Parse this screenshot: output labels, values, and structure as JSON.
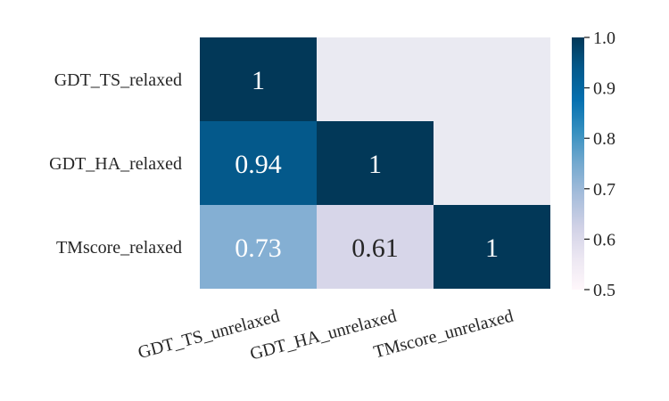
{
  "chart_data": {
    "type": "heatmap",
    "rows": [
      "GDT_TS_relaxed",
      "GDT_HA_relaxed",
      "TMscore_relaxed"
    ],
    "columns": [
      "GDT_TS_unrelaxed",
      "GDT_HA_unrelaxed",
      "TMscore_unrelaxed"
    ],
    "cells": [
      {
        "row": 0,
        "col": 0,
        "value": 1.0,
        "label": "1"
      },
      {
        "row": 1,
        "col": 0,
        "value": 0.94,
        "label": "0.94"
      },
      {
        "row": 1,
        "col": 1,
        "value": 1.0,
        "label": "1"
      },
      {
        "row": 2,
        "col": 0,
        "value": 0.73,
        "label": "0.73"
      },
      {
        "row": 2,
        "col": 1,
        "value": 0.61,
        "label": "0.61"
      },
      {
        "row": 2,
        "col": 2,
        "value": 1.0,
        "label": "1"
      }
    ],
    "masked": "upper-triangle",
    "colorbar": {
      "min": 0.5,
      "max": 1.0,
      "ticks": [
        "0.5",
        "0.6",
        "0.7",
        "0.8",
        "0.9",
        "1.0"
      ],
      "colormap": "PuBu",
      "colors": [
        "#fff7fb",
        "#ece7f2",
        "#d0d1e6",
        "#a6bddb",
        "#74a9cf",
        "#3690c0",
        "#0570b0",
        "#045a8d",
        "#023858"
      ]
    },
    "masked_color": "#eaeaf2",
    "x_tick_rotation": "15 degrees",
    "title": "",
    "xlabel": "",
    "ylabel": ""
  }
}
